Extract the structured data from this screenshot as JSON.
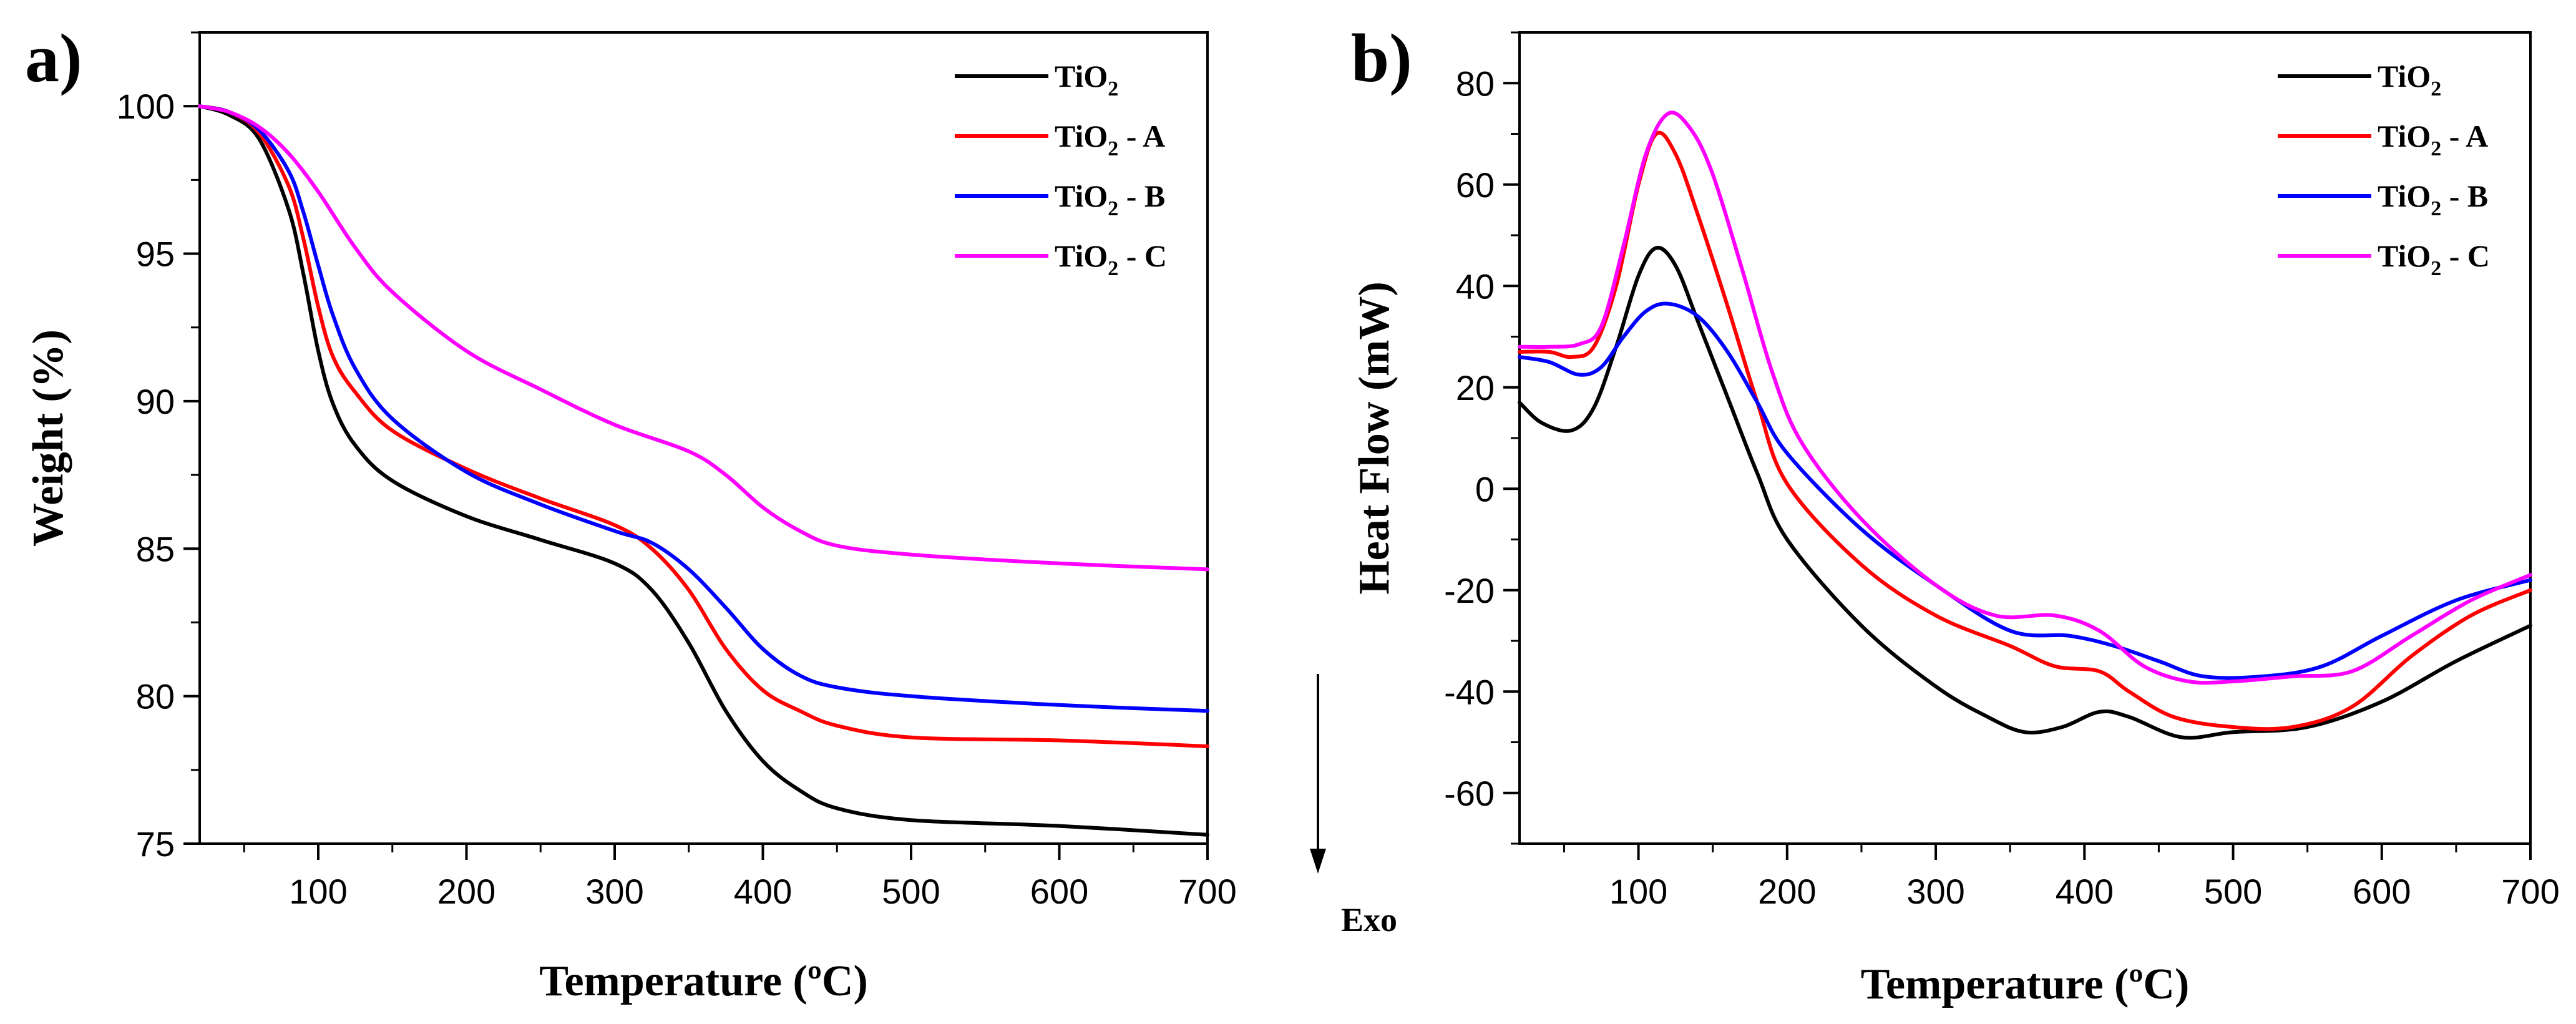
{
  "colors": {
    "TiO2": "#000000",
    "TiO2-A": "#ff0000",
    "TiO2-B": "#0000ff",
    "TiO2-C": "#ff00ff"
  },
  "chart_data": [
    {
      "type": "line",
      "panel_label": "a)",
      "xlabel": "Temperature (ºC)",
      "ylabel": "Weight (%)",
      "xlim": [
        20,
        700
      ],
      "ylim": [
        75,
        102.5
      ],
      "xticks": [
        100,
        200,
        300,
        400,
        500,
        600,
        700
      ],
      "yticks": [
        75,
        80,
        85,
        90,
        95,
        100
      ],
      "legend_position": "top-right",
      "series": [
        {
          "name": "TiO2",
          "legend_base": "TiO",
          "legend_sub": "2",
          "legend_suffix": "",
          "color": "#000000",
          "points": [
            [
              20,
              100
            ],
            [
              40,
              99.7
            ],
            [
              60,
              98.9
            ],
            [
              80,
              96.5
            ],
            [
              90,
              94.3
            ],
            [
              100,
              91.7
            ],
            [
              110,
              89.9
            ],
            [
              125,
              88.5
            ],
            [
              150,
              87.3
            ],
            [
              200,
              86.1
            ],
            [
              250,
              85.3
            ],
            [
              300,
              84.5
            ],
            [
              325,
              83.6
            ],
            [
              350,
              81.8
            ],
            [
              375,
              79.5
            ],
            [
              400,
              77.8
            ],
            [
              425,
              76.8
            ],
            [
              450,
              76.2
            ],
            [
              500,
              75.8
            ],
            [
              600,
              75.6
            ],
            [
              700,
              75.3
            ]
          ]
        },
        {
          "name": "TiO2 - A",
          "legend_base": "TiO",
          "legend_sub": "2",
          "legend_suffix": " - A",
          "color": "#ff0000",
          "points": [
            [
              20,
              100
            ],
            [
              40,
              99.8
            ],
            [
              60,
              99.1
            ],
            [
              80,
              97.3
            ],
            [
              90,
              95.5
            ],
            [
              100,
              93.2
            ],
            [
              110,
              91.5
            ],
            [
              125,
              90.3
            ],
            [
              150,
              89.0
            ],
            [
              200,
              87.7
            ],
            [
              250,
              86.7
            ],
            [
              300,
              85.8
            ],
            [
              325,
              85.0
            ],
            [
              350,
              83.6
            ],
            [
              375,
              81.6
            ],
            [
              400,
              80.2
            ],
            [
              425,
              79.5
            ],
            [
              450,
              79.0
            ],
            [
              500,
              78.6
            ],
            [
              600,
              78.5
            ],
            [
              700,
              78.3
            ]
          ]
        },
        {
          "name": "TiO2 - B",
          "legend_base": "TiO",
          "legend_sub": "2",
          "legend_suffix": " - B",
          "color": "#0000ff",
          "points": [
            [
              20,
              100
            ],
            [
              40,
              99.8
            ],
            [
              60,
              99.2
            ],
            [
              80,
              97.8
            ],
            [
              90,
              96.4
            ],
            [
              100,
              94.6
            ],
            [
              110,
              92.9
            ],
            [
              125,
              91.1
            ],
            [
              150,
              89.4
            ],
            [
              200,
              87.6
            ],
            [
              250,
              86.5
            ],
            [
              300,
              85.6
            ],
            [
              325,
              85.2
            ],
            [
              350,
              84.3
            ],
            [
              375,
              83.0
            ],
            [
              400,
              81.6
            ],
            [
              425,
              80.7
            ],
            [
              450,
              80.3
            ],
            [
              500,
              80.0
            ],
            [
              600,
              79.7
            ],
            [
              700,
              79.5
            ]
          ]
        },
        {
          "name": "TiO2 - C",
          "legend_base": "TiO",
          "legend_sub": "2",
          "legend_suffix": " - C",
          "color": "#ff00ff",
          "points": [
            [
              20,
              100
            ],
            [
              40,
              99.8
            ],
            [
              60,
              99.3
            ],
            [
              80,
              98.4
            ],
            [
              100,
              97.1
            ],
            [
              125,
              95.2
            ],
            [
              150,
              93.7
            ],
            [
              200,
              91.7
            ],
            [
              250,
              90.4
            ],
            [
              300,
              89.2
            ],
            [
              350,
              88.3
            ],
            [
              375,
              87.5
            ],
            [
              400,
              86.4
            ],
            [
              425,
              85.6
            ],
            [
              450,
              85.1
            ],
            [
              500,
              84.8
            ],
            [
              600,
              84.5
            ],
            [
              700,
              84.3
            ]
          ]
        }
      ]
    },
    {
      "type": "line",
      "panel_label": "b)",
      "xlabel": "Temperature (ºC)",
      "ylabel": "Heat Flow (mW)",
      "annotation": "Exo",
      "xlim": [
        20,
        700
      ],
      "ylim": [
        -70,
        90
      ],
      "xticks": [
        100,
        200,
        300,
        400,
        500,
        600,
        700
      ],
      "yticks": [
        -60,
        -40,
        -20,
        0,
        20,
        40,
        60,
        80
      ],
      "legend_position": "top-right",
      "series": [
        {
          "name": "TiO2",
          "legend_base": "TiO",
          "legend_sub": "2",
          "legend_suffix": "",
          "color": "#000000",
          "points": [
            [
              20,
              17
            ],
            [
              35,
              13
            ],
            [
              55,
              11.5
            ],
            [
              70,
              16
            ],
            [
              85,
              28
            ],
            [
              100,
              42
            ],
            [
              112,
              47.5
            ],
            [
              125,
              44
            ],
            [
              140,
              33
            ],
            [
              160,
              18
            ],
            [
              180,
              3
            ],
            [
              200,
              -10
            ],
            [
              250,
              -27
            ],
            [
              300,
              -39
            ],
            [
              335,
              -45
            ],
            [
              360,
              -48
            ],
            [
              385,
              -47
            ],
            [
              410,
              -44
            ],
            [
              430,
              -45
            ],
            [
              465,
              -49
            ],
            [
              500,
              -48
            ],
            [
              550,
              -47
            ],
            [
              600,
              -42
            ],
            [
              650,
              -34
            ],
            [
              700,
              -27
            ]
          ]
        },
        {
          "name": "TiO2 - A",
          "legend_base": "TiO",
          "legend_sub": "2",
          "legend_suffix": " - A",
          "color": "#ff0000",
          "points": [
            [
              20,
              27
            ],
            [
              40,
              27
            ],
            [
              55,
              26
            ],
            [
              70,
              28
            ],
            [
              85,
              40
            ],
            [
              100,
              60
            ],
            [
              112,
              70
            ],
            [
              125,
              66
            ],
            [
              140,
              54
            ],
            [
              160,
              36
            ],
            [
              180,
              17
            ],
            [
              200,
              1
            ],
            [
              250,
              -15
            ],
            [
              300,
              -25
            ],
            [
              350,
              -31
            ],
            [
              380,
              -35
            ],
            [
              410,
              -36
            ],
            [
              430,
              -40
            ],
            [
              460,
              -45
            ],
            [
              500,
              -47
            ],
            [
              540,
              -47
            ],
            [
              580,
              -43
            ],
            [
              620,
              -33
            ],
            [
              660,
              -25
            ],
            [
              700,
              -20
            ]
          ]
        },
        {
          "name": "TiO2 - B",
          "legend_base": "TiO",
          "legend_sub": "2",
          "legend_suffix": " - B",
          "color": "#0000ff",
          "points": [
            [
              20,
              26
            ],
            [
              40,
              25
            ],
            [
              60,
              22.5
            ],
            [
              75,
              24
            ],
            [
              90,
              30
            ],
            [
              105,
              35
            ],
            [
              120,
              36.5
            ],
            [
              140,
              34
            ],
            [
              160,
              27
            ],
            [
              180,
              17
            ],
            [
              200,
              7
            ],
            [
              250,
              -8
            ],
            [
              300,
              -19
            ],
            [
              350,
              -28
            ],
            [
              390,
              -29
            ],
            [
              420,
              -31
            ],
            [
              450,
              -34
            ],
            [
              480,
              -37
            ],
            [
              520,
              -37
            ],
            [
              560,
              -35
            ],
            [
              600,
              -29
            ],
            [
              650,
              -22
            ],
            [
              700,
              -18
            ]
          ]
        },
        {
          "name": "TiO2 - C",
          "legend_base": "TiO",
          "legend_sub": "2",
          "legend_suffix": " - C",
          "color": "#ff00ff",
          "points": [
            [
              20,
              28
            ],
            [
              40,
              28
            ],
            [
              60,
              28.5
            ],
            [
              75,
              32
            ],
            [
              90,
              48
            ],
            [
              105,
              66
            ],
            [
              120,
              74
            ],
            [
              135,
              71
            ],
            [
              150,
              62
            ],
            [
              170,
              43
            ],
            [
              190,
              23
            ],
            [
              210,
              9
            ],
            [
              250,
              -6
            ],
            [
              300,
              -19
            ],
            [
              340,
              -25
            ],
            [
              380,
              -25
            ],
            [
              410,
              -28
            ],
            [
              440,
              -35
            ],
            [
              470,
              -38
            ],
            [
              500,
              -38
            ],
            [
              540,
              -37
            ],
            [
              580,
              -36
            ],
            [
              620,
              -29
            ],
            [
              660,
              -22
            ],
            [
              700,
              -17
            ]
          ]
        }
      ]
    }
  ]
}
